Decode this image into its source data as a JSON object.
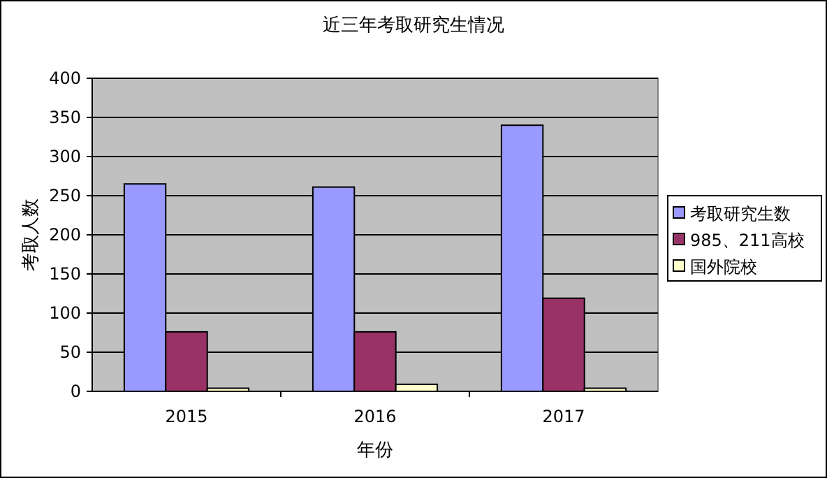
{
  "chart_data": {
    "type": "bar",
    "title": "近三年考取研究生情况",
    "xlabel": "年份",
    "ylabel": "考取人数",
    "categories": [
      "2015",
      "2016",
      "2017"
    ],
    "series": [
      {
        "name": "考取研究生数",
        "color": "#9999ff",
        "values": [
          265,
          261,
          340
        ]
      },
      {
        "name": "985、211高校",
        "color": "#993366",
        "values": [
          76,
          76,
          119
        ]
      },
      {
        "name": "国外院校",
        "color": "#ffffcc",
        "values": [
          4,
          9,
          4
        ]
      }
    ],
    "ylim": [
      0,
      400
    ],
    "yticks": [
      0,
      50,
      100,
      150,
      200,
      250,
      300,
      350,
      400
    ],
    "grid": "y",
    "legend": "right"
  }
}
